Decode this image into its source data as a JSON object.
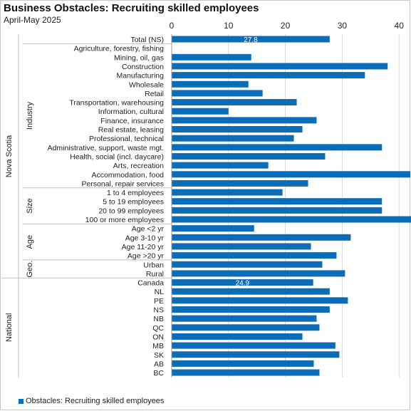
{
  "colors": {
    "bar": "#0b6cb8",
    "grid": "#d9d9d9",
    "sep": "#bfbfbf",
    "text": "#222222",
    "bar_label": "#ffffff"
  },
  "chart_data": {
    "type": "bar",
    "orientation": "horizontal",
    "title": "Business Obstacles: Recruiting skilled employees",
    "subtitle": "April-May 2025",
    "xlim": [
      0,
      80
    ],
    "xticks": [
      0,
      10,
      20,
      30,
      40,
      50,
      60,
      70,
      80
    ],
    "grid": true,
    "legend_position": "bottom-left",
    "series": [
      {
        "name": "Obstacles: Recruiting skilled employees"
      }
    ],
    "groups": [
      {
        "label": "Nova Scotia",
        "subgroups": [
          {
            "label": "",
            "categories": [
              "Total (NS)"
            ],
            "values": [
              27.8
            ],
            "data_labels": [
              "27.8"
            ]
          },
          {
            "label": "Industry",
            "categories": [
              "Agriculture, forestry, fishing",
              "Mining, oil, gas",
              "Construction",
              "Manufacturing",
              "Wholesale",
              "Retail",
              "Transportation, warehousing",
              "Information, cultural",
              "Finance, insurance",
              "Real estate, leasing",
              "Professional, technical",
              "Administrative, support, waste mgt.",
              "Health, social (incl. daycare)",
              "Arts, recreation",
              "Accommodation, food",
              "Personal, repair services"
            ],
            "values": [
              0,
              14,
              38,
              34,
              13.5,
              16,
              22,
              10,
              25.5,
              23,
              21.5,
              37,
              27,
              17,
              42,
              24
            ]
          },
          {
            "label": "Size",
            "categories": [
              "1 to 4 employees",
              "5 to 19 employees",
              "20 to 99 employees",
              "100 or more employees"
            ],
            "values": [
              19.5,
              37,
              37,
              52.5
            ]
          },
          {
            "label": "Age",
            "categories": [
              "Age <2 yr",
              "Age 3-10 yr",
              "Age 11-20 yr",
              "Age >20 yr"
            ],
            "values": [
              14.5,
              31.5,
              24.5,
              29
            ]
          },
          {
            "label": "Geo.",
            "categories": [
              "Urban",
              "Rural"
            ],
            "values": [
              26.5,
              30.5
            ]
          }
        ]
      },
      {
        "label": "National",
        "subgroups": [
          {
            "label": "",
            "categories": [
              "Canada",
              "NL",
              "PE",
              "NS",
              "NB",
              "QC",
              "ON",
              "MB",
              "SK",
              "AB",
              "BC"
            ],
            "values": [
              24.9,
              27.8,
              31,
              27.8,
              25.5,
              26,
              23,
              28.8,
              29.5,
              25,
              26
            ],
            "data_labels": [
              "24.9",
              "",
              "",
              "",
              "",
              "",
              "",
              "",
              "",
              "",
              ""
            ]
          }
        ]
      }
    ]
  }
}
